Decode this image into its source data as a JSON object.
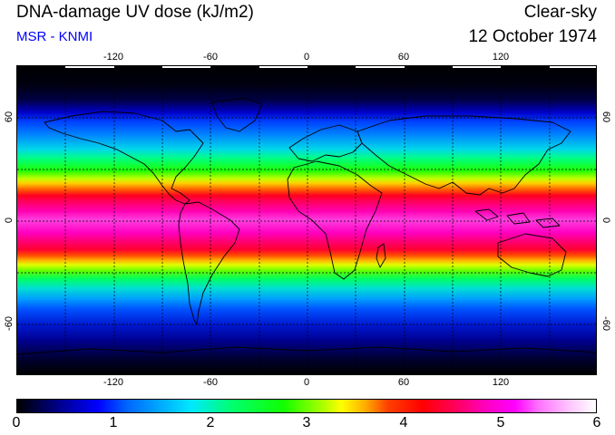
{
  "header": {
    "title": "DNA-damage UV dose (kJ/m2)",
    "subtitle": "MSR - KNMI",
    "condition": "Clear-sky",
    "date": "12 October 1974"
  },
  "map": {
    "lon_ticks": [
      "-120",
      "-60",
      "0",
      "60",
      "120"
    ],
    "lat_ticks": [
      "60",
      "0",
      "-60"
    ],
    "gridlines": "dashed",
    "colors": {
      "grid": "#000000",
      "coast": "#000000"
    }
  },
  "colorbar": {
    "labels": [
      "0",
      "1",
      "2",
      "3",
      "4",
      "5",
      "6"
    ],
    "range": [
      0,
      6
    ]
  }
}
